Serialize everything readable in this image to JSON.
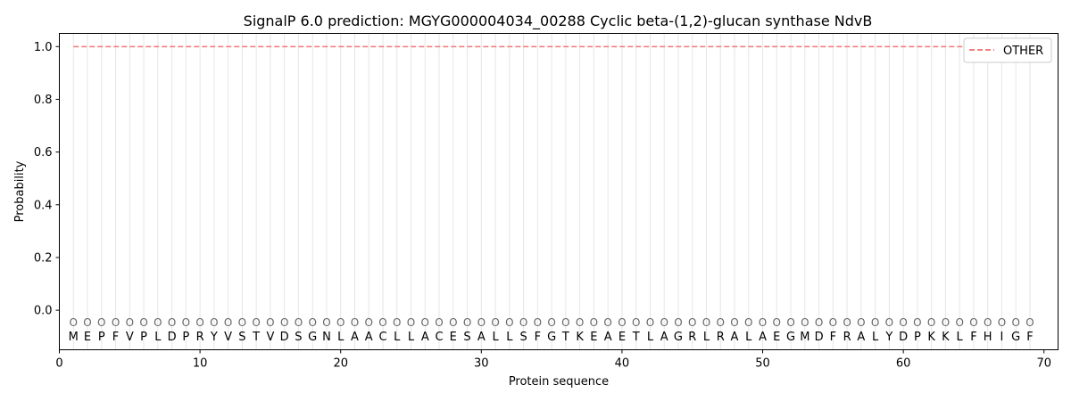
{
  "chart_data": {
    "type": "line",
    "title": "SignalP 6.0 prediction: MGYG000004034_00288 Cyclic beta-(1,2)-glucan synthase NdvB",
    "xlabel": "Protein sequence",
    "ylabel": "Probability",
    "xlim": [
      0,
      71
    ],
    "ylim": [
      -0.15,
      1.05
    ],
    "x_ticks": [
      0,
      10,
      20,
      30,
      40,
      50,
      60,
      70
    ],
    "y_ticks": [
      0.0,
      0.2,
      0.4,
      0.6,
      0.8,
      1.0
    ],
    "y_tick_labels": [
      "0.0",
      "0.2",
      "0.4",
      "0.6",
      "0.8",
      "1.0"
    ],
    "legend_position": "top-right",
    "sequence": [
      "M",
      "E",
      "P",
      "F",
      "V",
      "P",
      "L",
      "D",
      "P",
      "R",
      "Y",
      "V",
      "S",
      "T",
      "V",
      "D",
      "S",
      "G",
      "N",
      "L",
      "A",
      "A",
      "C",
      "L",
      "L",
      "A",
      "C",
      "E",
      "S",
      "A",
      "L",
      "L",
      "S",
      "F",
      "G",
      "T",
      "K",
      "E",
      "A",
      "E",
      "T",
      "L",
      "A",
      "G",
      "R",
      "L",
      "R",
      "A",
      "L",
      "A",
      "E",
      "G",
      "M",
      "D",
      "F",
      "R",
      "A",
      "L",
      "Y",
      "D",
      "P",
      "K",
      "K",
      "L",
      "F",
      "H",
      "I",
      "G",
      "F"
    ],
    "region_marker": "O",
    "region_marker_y": -0.045,
    "series": [
      {
        "name": "OTHER",
        "color": "#f08080",
        "style": "dashed",
        "x_start": 1,
        "x_end": 70,
        "value": 1.0
      }
    ]
  }
}
